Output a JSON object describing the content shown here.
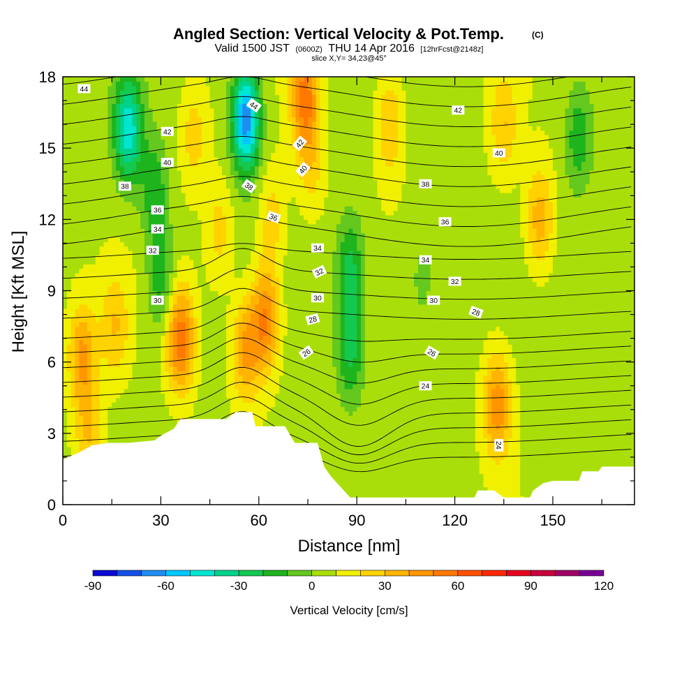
{
  "header": {
    "title": "Angled Section: Vertical Velocity & Pot.Temp.",
    "title_unit": "(C)",
    "valid_prefix": "Valid 1500 JST",
    "valid_utc": "(0600Z)",
    "valid_date": "THU 14 Apr 2016",
    "forecast": "[12hrFcst@2148z]",
    "slice": "slice X,Y= 34,23@45°"
  },
  "chart_data": {
    "type": "heatmap",
    "xlabel": "Distance [nm]",
    "ylabel": "Height [Kft MSL]",
    "xlim": [
      0,
      175
    ],
    "ylim": [
      0,
      18
    ],
    "x_ticks": [
      0,
      30,
      60,
      90,
      120,
      150
    ],
    "y_ticks": [
      0,
      3,
      6,
      9,
      12,
      15,
      18
    ],
    "x_tick_labels": [
      "0",
      "30",
      "60",
      "90",
      "120",
      "150"
    ],
    "y_tick_labels": [
      "0",
      "3",
      "6",
      "9",
      "12",
      "15",
      "18"
    ],
    "colorbar": {
      "title": "Vertical Velocity [cm/s]",
      "min": -90,
      "max": 120,
      "step": 10,
      "tick_values": [
        -90,
        -60,
        -30,
        0,
        30,
        60,
        90,
        120
      ],
      "tick_labels": [
        "-90",
        "-60",
        "-30",
        "0",
        "30",
        "60",
        "90",
        "120"
      ],
      "colors": [
        "#0a0ad2",
        "#1450e6",
        "#1e8cf0",
        "#00c8ff",
        "#00e6d2",
        "#00d28c",
        "#14c850",
        "#1eb41e",
        "#64c81e",
        "#aade0a",
        "#f0f000",
        "#ffd200",
        "#ffb400",
        "#ff9600",
        "#ff7800",
        "#ff5000",
        "#ff2800",
        "#e6001e",
        "#c8003c",
        "#a00064",
        "#780096"
      ]
    },
    "terrain_top_kft": [
      [
        0,
        1.9
      ],
      [
        5,
        2.2
      ],
      [
        9,
        2.5
      ],
      [
        14,
        2.6
      ],
      [
        20,
        2.6
      ],
      [
        28,
        2.7
      ],
      [
        30,
        2.9
      ],
      [
        34,
        3.2
      ],
      [
        36,
        3.6
      ],
      [
        50,
        3.6
      ],
      [
        53,
        3.9
      ],
      [
        58,
        3.9
      ],
      [
        59,
        3.3
      ],
      [
        68,
        3.3
      ],
      [
        71,
        2.6
      ],
      [
        78,
        2.6
      ],
      [
        80,
        1.6
      ],
      [
        82,
        1.2
      ],
      [
        84,
        0.9
      ],
      [
        86,
        0.6
      ],
      [
        88,
        0.3
      ],
      [
        100,
        0.3
      ],
      [
        126,
        0.3
      ],
      [
        127,
        0.6
      ],
      [
        132,
        0.6
      ],
      [
        135,
        0.3
      ],
      [
        143,
        0.3
      ],
      [
        144,
        0.6
      ],
      [
        147,
        0.9
      ],
      [
        150,
        1.0
      ],
      [
        158,
        1.0
      ],
      [
        159,
        1.4
      ],
      [
        164,
        1.4
      ],
      [
        165,
        1.6
      ],
      [
        175,
        1.6
      ]
    ],
    "velocity_features": [
      {
        "x": 6,
        "z": 6.2,
        "w": 35
      },
      {
        "x": 8,
        "z": 2.8,
        "w": 22
      },
      {
        "x": 16,
        "z": 7.5,
        "w": 22
      },
      {
        "x": 20,
        "z": 15.8,
        "w": -55
      },
      {
        "x": 28,
        "z": 13.2,
        "w": -25
      },
      {
        "x": 30,
        "z": 9.5,
        "w": -25
      },
      {
        "x": 36,
        "z": 7.0,
        "w": 50
      },
      {
        "x": 40,
        "z": 15.5,
        "w": 18
      },
      {
        "x": 48,
        "z": 11.5,
        "w": 18
      },
      {
        "x": 56,
        "z": 16.2,
        "w": -75
      },
      {
        "x": 56,
        "z": 6.5,
        "w": 35
      },
      {
        "x": 62,
        "z": 7.8,
        "w": 45
      },
      {
        "x": 64,
        "z": 12.0,
        "w": 18
      },
      {
        "x": 74,
        "z": 17.2,
        "w": 45
      },
      {
        "x": 76,
        "z": 14.5,
        "w": 18
      },
      {
        "x": 88,
        "z": 10.0,
        "w": -30
      },
      {
        "x": 88,
        "z": 6.5,
        "w": -30
      },
      {
        "x": 100,
        "z": 16.0,
        "w": 25
      },
      {
        "x": 110,
        "z": 9.5,
        "w": -12
      },
      {
        "x": 133,
        "z": 4.2,
        "w": 40
      },
      {
        "x": 135,
        "z": 16.0,
        "w": 22
      },
      {
        "x": 146,
        "z": 12.0,
        "w": 30
      },
      {
        "x": 158,
        "z": 15.5,
        "w": -25
      }
    ],
    "theta_contour_levels": [
      22,
      23,
      24,
      25,
      26,
      27,
      28,
      29,
      30,
      31,
      32,
      33,
      34,
      35,
      36,
      37,
      38,
      39,
      40,
      41,
      42,
      43,
      44
    ],
    "theta_labels": [
      {
        "text": "44",
        "x": 6.5,
        "z": 17.5,
        "angle": 0
      },
      {
        "text": "44",
        "x": 58.5,
        "z": 16.8,
        "angle": 35
      },
      {
        "text": "42",
        "x": 32,
        "z": 15.7,
        "angle": 0
      },
      {
        "text": "42",
        "x": 72.5,
        "z": 15.2,
        "angle": -50
      },
      {
        "text": "42",
        "x": 121,
        "z": 16.6,
        "angle": 0
      },
      {
        "text": "40",
        "x": 32,
        "z": 14.4,
        "angle": 0
      },
      {
        "text": "40",
        "x": 73.5,
        "z": 14.1,
        "angle": -50
      },
      {
        "text": "40",
        "x": 133.5,
        "z": 14.8,
        "angle": 0
      },
      {
        "text": "38",
        "x": 19,
        "z": 13.4,
        "angle": 0
      },
      {
        "text": "38",
        "x": 57,
        "z": 13.4,
        "angle": 35
      },
      {
        "text": "38",
        "x": 111,
        "z": 13.5,
        "angle": 0
      },
      {
        "text": "36",
        "x": 29,
        "z": 12.4,
        "angle": 0
      },
      {
        "text": "36",
        "x": 64.5,
        "z": 12.1,
        "angle": 20
      },
      {
        "text": "36",
        "x": 117,
        "z": 11.9,
        "angle": 0
      },
      {
        "text": "34",
        "x": 29,
        "z": 11.6,
        "angle": 0
      },
      {
        "text": "34",
        "x": 78,
        "z": 10.8,
        "angle": 0
      },
      {
        "text": "34",
        "x": 111,
        "z": 10.3,
        "angle": 0
      },
      {
        "text": "32",
        "x": 27.5,
        "z": 10.7,
        "angle": 0
      },
      {
        "text": "32",
        "x": 78.5,
        "z": 9.8,
        "angle": -25
      },
      {
        "text": "32",
        "x": 120,
        "z": 9.4,
        "angle": 0
      },
      {
        "text": "30",
        "x": 29,
        "z": 8.6,
        "angle": 0
      },
      {
        "text": "30",
        "x": 78,
        "z": 8.7,
        "angle": 0
      },
      {
        "text": "30",
        "x": 113.5,
        "z": 8.6,
        "angle": 0
      },
      {
        "text": "28",
        "x": 76.5,
        "z": 7.8,
        "angle": -15
      },
      {
        "text": "28",
        "x": 126.5,
        "z": 8.1,
        "angle": 20
      },
      {
        "text": "26",
        "x": 74.5,
        "z": 6.4,
        "angle": -35
      },
      {
        "text": "26",
        "x": 113,
        "z": 6.4,
        "angle": 30
      },
      {
        "text": "24",
        "x": 111,
        "z": 5.0,
        "angle": 0
      },
      {
        "text": "24",
        "x": 133.5,
        "z": 2.5,
        "angle": 90
      }
    ]
  }
}
